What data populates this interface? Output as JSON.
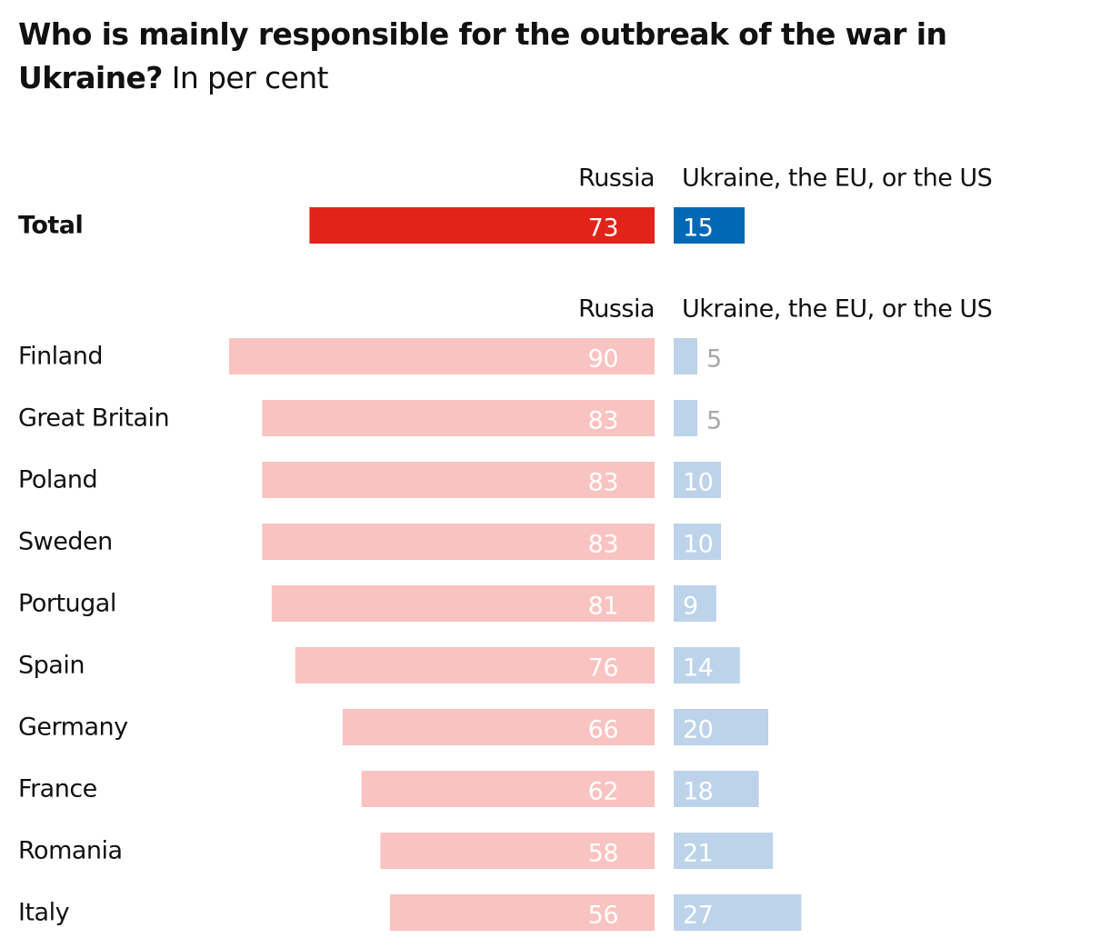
{
  "title": {
    "bold": "Who is mainly responsible for the outbreak of the war in Ukraine?",
    "rest": " In per cent"
  },
  "chart_data": {
    "type": "bar",
    "orientation": "horizontal-diverging",
    "headers": {
      "left": "Russia",
      "right": "Ukraine, the EU, or the US"
    },
    "total": {
      "label": "Total",
      "left": 73,
      "right": 15
    },
    "categories": [
      "Finland",
      "Great Britain",
      "Poland",
      "Sweden",
      "Portugal",
      "Spain",
      "Germany",
      "France",
      "Romania",
      "Italy"
    ],
    "series": [
      {
        "name": "Russia",
        "values": [
          90,
          83,
          83,
          83,
          81,
          76,
          66,
          62,
          58,
          56
        ]
      },
      {
        "name": "Ukraine, the EU, or the US",
        "values": [
          5,
          5,
          10,
          10,
          9,
          14,
          20,
          18,
          21,
          27
        ]
      }
    ],
    "colors": {
      "total_left": "#e2231a",
      "total_right": "#0068b4",
      "left": "#f8c3c1",
      "right": "#bdd3ea"
    }
  }
}
